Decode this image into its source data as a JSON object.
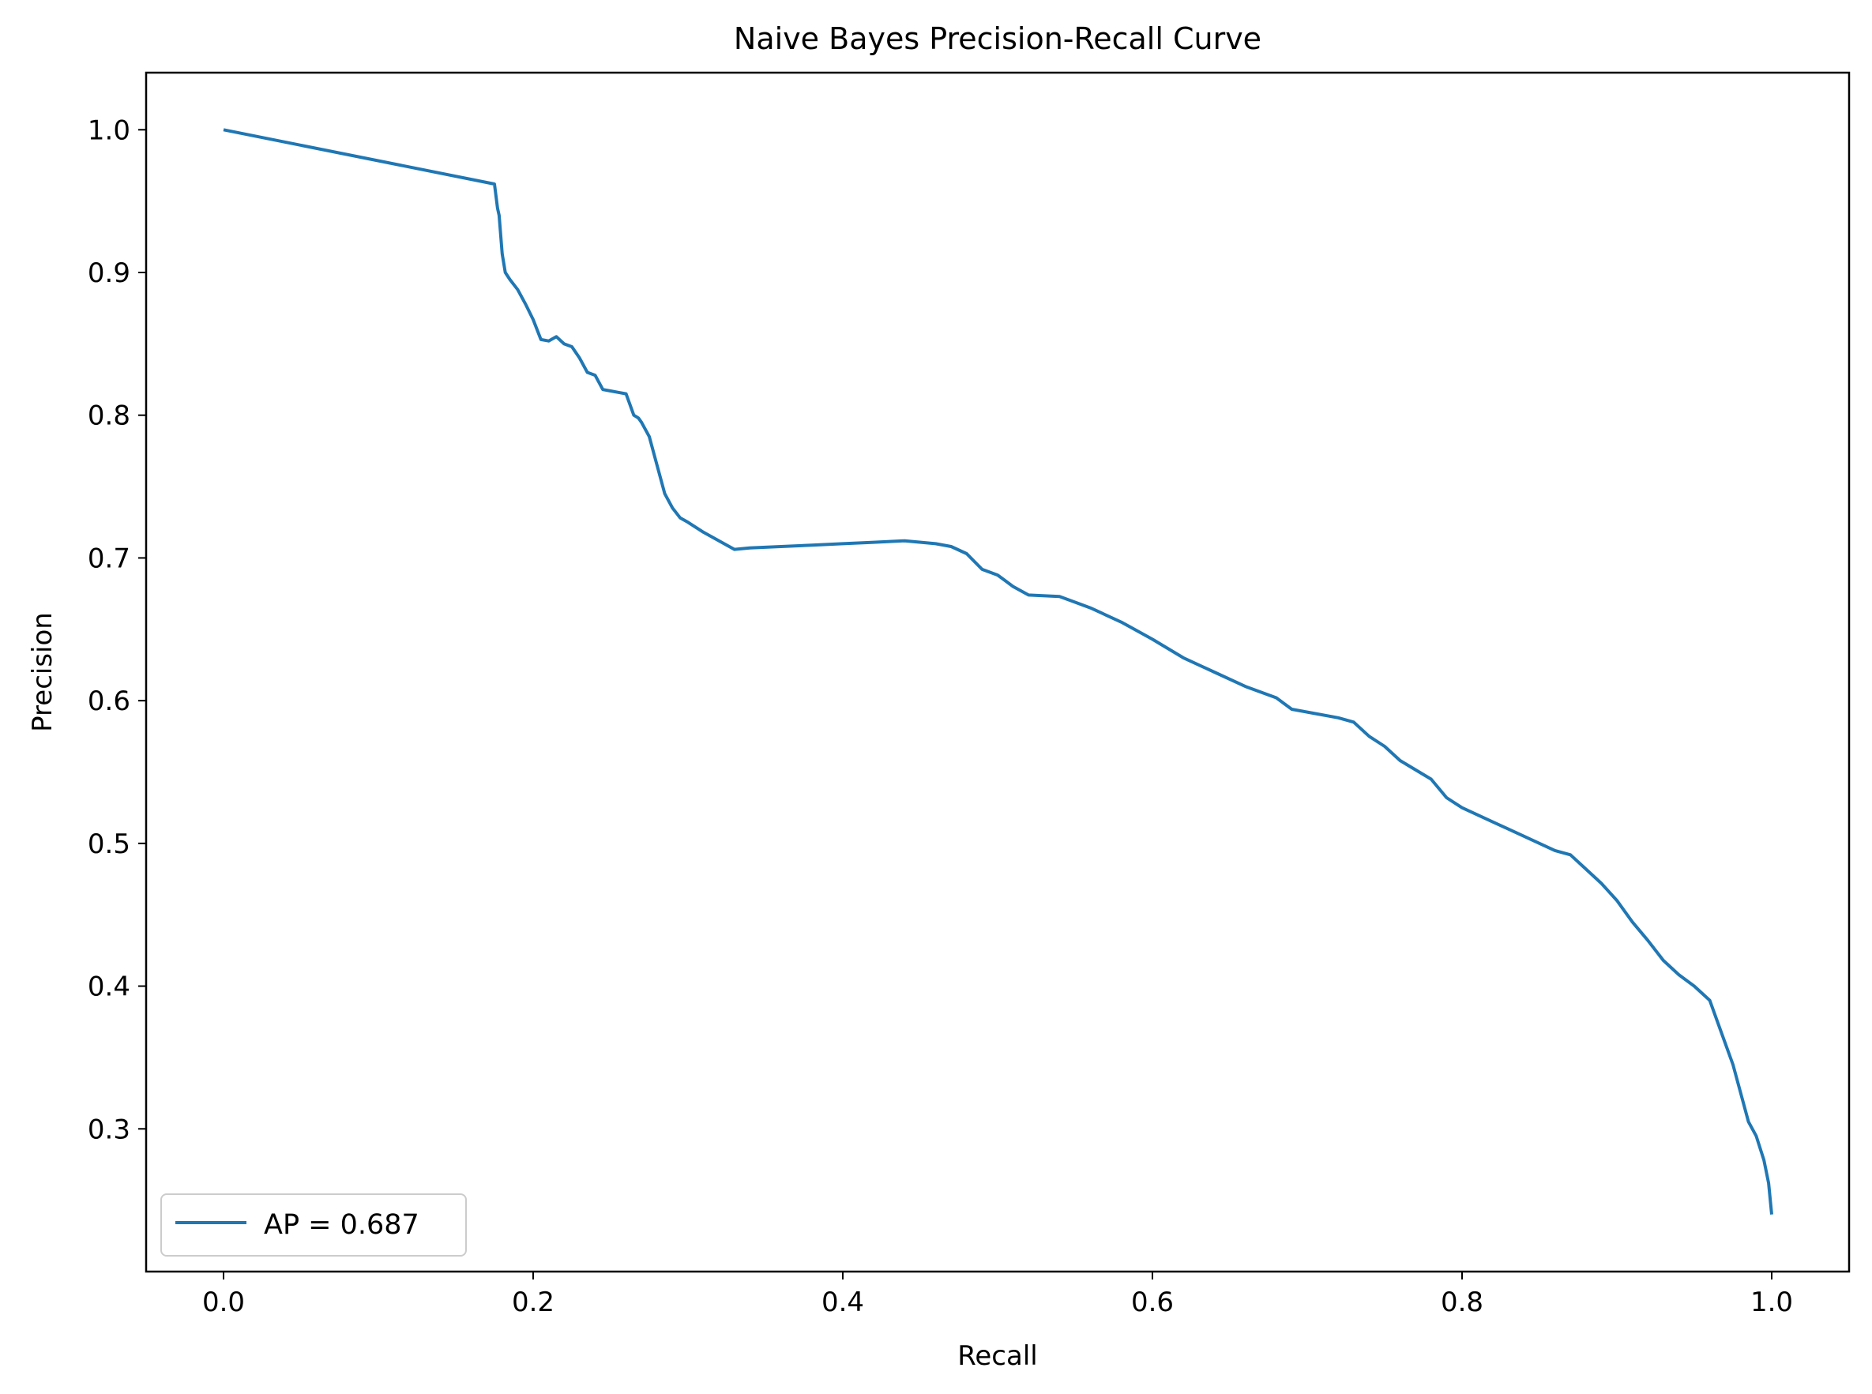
{
  "chart_data": {
    "type": "line",
    "title": "Naive Bayes Precision-Recall Curve",
    "xlabel": "Recall",
    "ylabel": "Precision",
    "xlim": [
      -0.05,
      1.05
    ],
    "ylim": [
      0.2,
      1.04
    ],
    "xticks": [
      0.0,
      0.2,
      0.4,
      0.6,
      0.8,
      1.0
    ],
    "xtick_labels": [
      "0.0",
      "0.2",
      "0.4",
      "0.6",
      "0.8",
      "1.0"
    ],
    "yticks": [
      0.3,
      0.4,
      0.5,
      0.6,
      0.7,
      0.8,
      0.9,
      1.0
    ],
    "ytick_labels": [
      "0.3",
      "0.4",
      "0.5",
      "0.6",
      "0.7",
      "0.8",
      "0.9",
      "1.0"
    ],
    "grid": false,
    "legend_position": "lower-left",
    "series": [
      {
        "name": "AP = 0.687",
        "color": "#1f77b4",
        "x": [
          0.0,
          0.175,
          0.177,
          0.178,
          0.18,
          0.182,
          0.185,
          0.19,
          0.195,
          0.2,
          0.205,
          0.21,
          0.215,
          0.22,
          0.225,
          0.23,
          0.235,
          0.24,
          0.245,
          0.25,
          0.255,
          0.26,
          0.265,
          0.268,
          0.27,
          0.275,
          0.28,
          0.285,
          0.29,
          0.295,
          0.3,
          0.31,
          0.32,
          0.33,
          0.34,
          0.36,
          0.38,
          0.4,
          0.42,
          0.44,
          0.46,
          0.47,
          0.48,
          0.49,
          0.5,
          0.51,
          0.52,
          0.54,
          0.56,
          0.58,
          0.6,
          0.62,
          0.64,
          0.66,
          0.68,
          0.69,
          0.7,
          0.72,
          0.73,
          0.74,
          0.75,
          0.76,
          0.78,
          0.79,
          0.8,
          0.82,
          0.84,
          0.86,
          0.87,
          0.88,
          0.89,
          0.9,
          0.91,
          0.92,
          0.93,
          0.94,
          0.95,
          0.96,
          0.965,
          0.97,
          0.975,
          0.98,
          0.985,
          0.99,
          0.995,
          0.998,
          1.0
        ],
        "values": [
          1.0,
          0.962,
          0.945,
          0.94,
          0.913,
          0.9,
          0.895,
          0.888,
          0.878,
          0.867,
          0.853,
          0.852,
          0.855,
          0.85,
          0.848,
          0.84,
          0.83,
          0.828,
          0.818,
          0.817,
          0.816,
          0.815,
          0.8,
          0.798,
          0.795,
          0.785,
          0.765,
          0.745,
          0.735,
          0.728,
          0.725,
          0.718,
          0.712,
          0.706,
          0.707,
          0.708,
          0.709,
          0.71,
          0.711,
          0.712,
          0.71,
          0.708,
          0.703,
          0.692,
          0.688,
          0.68,
          0.674,
          0.673,
          0.665,
          0.655,
          0.643,
          0.63,
          0.62,
          0.61,
          0.602,
          0.594,
          0.592,
          0.588,
          0.585,
          0.575,
          0.568,
          0.558,
          0.545,
          0.532,
          0.525,
          0.515,
          0.505,
          0.495,
          0.492,
          0.482,
          0.472,
          0.46,
          0.445,
          0.432,
          0.418,
          0.408,
          0.4,
          0.39,
          0.375,
          0.36,
          0.345,
          0.325,
          0.305,
          0.295,
          0.278,
          0.262,
          0.24
        ]
      }
    ]
  }
}
